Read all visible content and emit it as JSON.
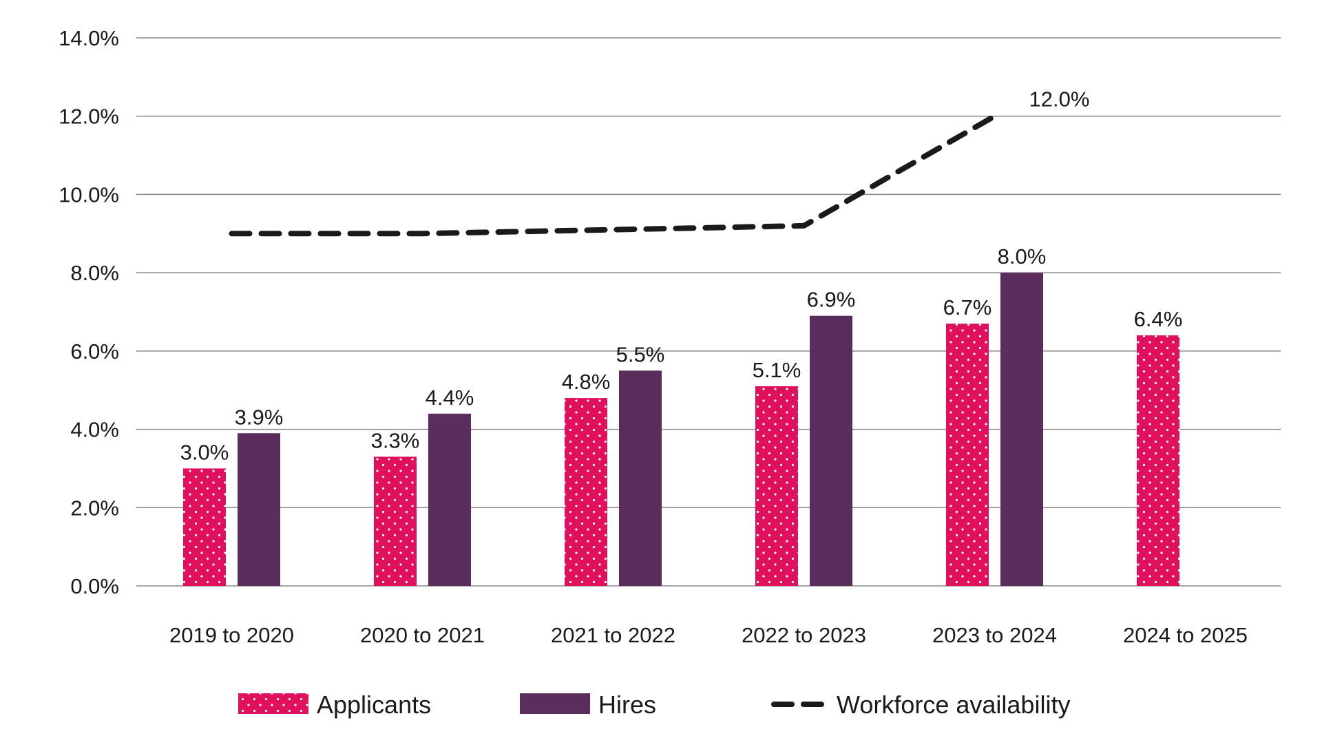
{
  "chart_data": {
    "type": "bar",
    "categories": [
      "2019 to 2020",
      "2020 to 2021",
      "2021 to 2022",
      "2022 to 2023",
      "2023 to 2024",
      "2024 to 2025"
    ],
    "series": [
      {
        "name": "Applicants",
        "kind": "bar",
        "pattern": "dotted",
        "color": "#e0105f",
        "values": [
          3.0,
          3.3,
          4.8,
          5.1,
          6.7,
          6.4
        ],
        "labels": [
          "3.0%",
          "3.3%",
          "4.8%",
          "5.1%",
          "6.7%",
          "6.4%"
        ]
      },
      {
        "name": "Hires",
        "kind": "bar",
        "color": "#5a2d5c",
        "values": [
          3.9,
          4.4,
          5.5,
          6.9,
          8.0,
          null
        ],
        "labels": [
          "3.9%",
          "4.4%",
          "5.5%",
          "6.9%",
          "8.0%",
          ""
        ]
      },
      {
        "name": "Workforce availability",
        "kind": "line",
        "style": "dashed",
        "color": "#1a1a1a",
        "values": [
          9.0,
          9.0,
          9.1,
          9.2,
          12.0,
          null
        ],
        "labels": [
          "",
          "",
          "",
          "",
          "12.0%",
          ""
        ]
      }
    ],
    "y_ticks": [
      "0.0%",
      "2.0%",
      "4.0%",
      "6.0%",
      "8.0%",
      "10.0%",
      "12.0%",
      "14.0%"
    ],
    "ylim": [
      0,
      14
    ],
    "grid": true,
    "legend_position": "bottom",
    "title": "",
    "xlabel": "",
    "ylabel": ""
  },
  "colors": {
    "applicants": "#e0105f",
    "hires": "#5a2d5c",
    "workforce": "#1a1a1a",
    "grid": "#8a8a8a"
  }
}
